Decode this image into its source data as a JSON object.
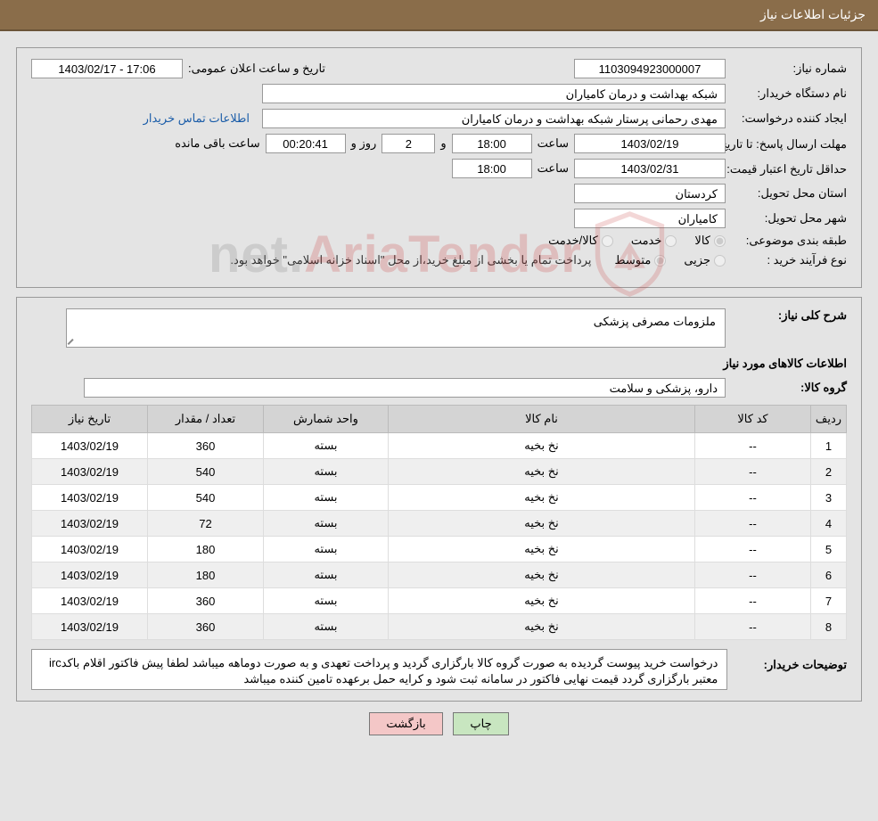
{
  "header": {
    "title": "جزئیات اطلاعات نیاز"
  },
  "labels": {
    "need_no": "شماره نیاز:",
    "announce_datetime": "تاریخ و ساعت اعلان عمومی:",
    "buyer_org": "نام دستگاه خریدار:",
    "requester": "ایجاد کننده درخواست:",
    "contact_link": "اطلاعات تماس خریدار",
    "reply_deadline": "مهلت ارسال پاسخ: تا تاریخ:",
    "hour": "ساعت",
    "and": "و",
    "day": "روز و",
    "remaining": "ساعت باقی مانده",
    "min_validity": "حداقل تاریخ اعتبار قیمت: تا تاریخ:",
    "delivery_province": "استان محل تحویل:",
    "delivery_city": "شهر محل تحویل:",
    "classification": "طبقه بندی موضوعی:",
    "class_goods": "کالا",
    "class_service": "خدمت",
    "class_goods_service": "کالا/خدمت",
    "purchase_type": "نوع فرآیند خرید :",
    "purchase_minor": "جزیی",
    "purchase_medium": "متوسط",
    "purchase_note": "پرداخت تمام یا بخشی از مبلغ خرید،از محل \"اسناد خزانه اسلامی\" خواهد بود.",
    "general_desc": "شرح کلی نیاز:",
    "items_info": "اطلاعات کالاهای مورد نیاز",
    "group": "گروه کالا:",
    "buyer_notes": "توضیحات خریدار:"
  },
  "fields": {
    "need_no": "1103094923000007",
    "announce_datetime": "1403/02/17 - 17:06",
    "buyer_org": "شبکه بهداشت و درمان کامیاران",
    "requester": "مهدی رحمانی پرستار شبکه بهداشت و درمان کامیاران",
    "reply_date": "1403/02/19",
    "reply_hour": "18:00",
    "days_left": "2",
    "countdown": "00:20:41",
    "validity_date": "1403/02/31",
    "validity_hour": "18:00",
    "province": "کردستان",
    "city": "کامیاران",
    "general_desc": "ملزومات مصرفی پزشکی",
    "group": "دارو، پزشکی و سلامت",
    "buyer_notes": "درخواست خرید پیوست گردیده   به صورت گروه کالا بارگزاری گردید و پرداخت تعهدی و به صورت دوماهه میباشد لطفا  پیش فاکتور اقلام باکدirc معتبر بارگزاری گردد قیمت نهایی فاکتور در سامانه ثبت شود و کرایه حمل برعهده تامین کننده میباشد"
  },
  "table": {
    "headers": {
      "idx": "ردیف",
      "code": "کد کالا",
      "name": "نام کالا",
      "unit": "واحد شمارش",
      "qty": "تعداد / مقدار",
      "date": "تاریخ نیاز"
    },
    "rows": [
      {
        "idx": "1",
        "code": "--",
        "name": "نخ بخیه",
        "unit": "بسته",
        "qty": "360",
        "date": "1403/02/19"
      },
      {
        "idx": "2",
        "code": "--",
        "name": "نخ بخیه",
        "unit": "بسته",
        "qty": "540",
        "date": "1403/02/19"
      },
      {
        "idx": "3",
        "code": "--",
        "name": "نخ بخیه",
        "unit": "بسته",
        "qty": "540",
        "date": "1403/02/19"
      },
      {
        "idx": "4",
        "code": "--",
        "name": "نخ بخیه",
        "unit": "بسته",
        "qty": "72",
        "date": "1403/02/19"
      },
      {
        "idx": "5",
        "code": "--",
        "name": "نخ بخیه",
        "unit": "بسته",
        "qty": "180",
        "date": "1403/02/19"
      },
      {
        "idx": "6",
        "code": "--",
        "name": "نخ بخیه",
        "unit": "بسته",
        "qty": "180",
        "date": "1403/02/19"
      },
      {
        "idx": "7",
        "code": "--",
        "name": "نخ بخیه",
        "unit": "بسته",
        "qty": "360",
        "date": "1403/02/19"
      },
      {
        "idx": "8",
        "code": "--",
        "name": "نخ بخیه",
        "unit": "بسته",
        "qty": "360",
        "date": "1403/02/19"
      }
    ]
  },
  "buttons": {
    "print": "چاپ",
    "back": "بازگشت"
  },
  "watermark": {
    "text1": "AriaTender",
    "text2": ".net"
  },
  "colors": {
    "header_bg": "#8a6d4a",
    "panel_bg": "#e4e4e4",
    "th_bg": "#d4d4d4",
    "btn_print": "#c8e6c0",
    "btn_back": "#f4c7c7",
    "link": "#1a5ca8"
  },
  "radios": {
    "classification_selected": "goods",
    "purchase_selected": "medium"
  }
}
